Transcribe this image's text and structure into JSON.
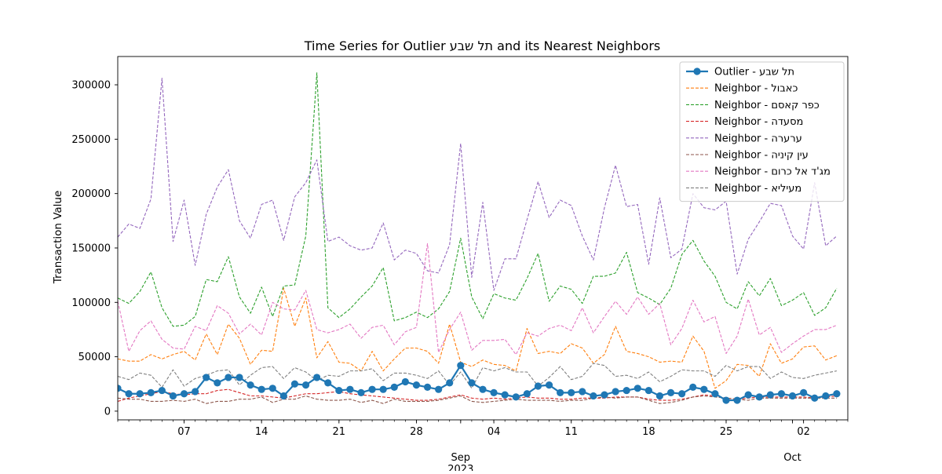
{
  "chart_data": {
    "type": "line",
    "title": "Time Series for Outlier תל שבע and its Nearest Neighbors",
    "xlabel": "",
    "ylabel": "Transaction Value",
    "x_start": "2023-08-01",
    "x_end": "2023-10-06",
    "xlim": [
      "2023-08-01",
      "2023-10-06"
    ],
    "ylim": [
      -8000,
      326000
    ],
    "y_ticks": [
      0,
      50000,
      100000,
      150000,
      200000,
      250000,
      300000
    ],
    "x_ticks": [
      {
        "date": "2023-08-07",
        "label": "07"
      },
      {
        "date": "2023-08-14",
        "label": "14"
      },
      {
        "date": "2023-08-21",
        "label": "21"
      },
      {
        "date": "2023-08-28",
        "label": "28"
      },
      {
        "date": "2023-09-04",
        "label": "04"
      },
      {
        "date": "2023-09-11",
        "label": "11"
      },
      {
        "date": "2023-09-18",
        "label": "18"
      },
      {
        "date": "2023-09-25",
        "label": "25"
      },
      {
        "date": "2023-10-02",
        "label": "02"
      }
    ],
    "month_labels": [
      {
        "date": "2023-09-01",
        "label": "Sep",
        "year": "2023"
      },
      {
        "date": "2023-10-01",
        "label": "Oct",
        "year": ""
      }
    ],
    "grid": false,
    "legend_position": "top-right",
    "series": [
      {
        "name": "Outlier - תל שבע",
        "color": "#1f77b4",
        "style": "solid-marker",
        "values": [
          21000,
          16000,
          16000,
          17000,
          19000,
          14000,
          16000,
          18000,
          31000,
          26000,
          31000,
          31000,
          24000,
          20000,
          21000,
          14000,
          25000,
          24000,
          31000,
          26000,
          19000,
          20000,
          17000,
          20000,
          20000,
          22000,
          27000,
          24000,
          22000,
          20000,
          26000,
          42000,
          26000,
          20000,
          17000,
          15000,
          13000,
          16000,
          23000,
          24000,
          17000,
          17000,
          18000,
          14000,
          15000,
          18000,
          19000,
          21000,
          19000,
          14000,
          17000,
          16000,
          22000,
          20000,
          16000,
          10000,
          10000,
          15000,
          13000,
          15000,
          16000,
          14000,
          17000,
          12000,
          14000,
          16000
        ]
      },
      {
        "name": "Neighbor - כאבול",
        "color": "#ff7f0e",
        "style": "dashed",
        "values": [
          48000,
          46000,
          46000,
          52000,
          48000,
          52000,
          55000,
          47000,
          71000,
          52000,
          80000,
          67000,
          43000,
          56000,
          55000,
          113000,
          78000,
          104000,
          49000,
          64000,
          45000,
          44000,
          37000,
          55000,
          37000,
          48000,
          58000,
          58000,
          55000,
          44000,
          80000,
          45000,
          41000,
          47000,
          43000,
          42000,
          37000,
          76000,
          53000,
          55000,
          53000,
          62000,
          58000,
          44000,
          52000,
          78000,
          55000,
          53000,
          50000,
          45000,
          46000,
          45000,
          69000,
          55000,
          21000,
          28000,
          43000,
          42000,
          32000,
          62000,
          44000,
          48000,
          59000,
          60000,
          47000,
          51000
        ]
      },
      {
        "name": "Neighbor - כפר קאסם",
        "color": "#2ca02c",
        "style": "dashed",
        "values": [
          104000,
          99000,
          110000,
          128000,
          95000,
          78000,
          79000,
          87000,
          121000,
          119000,
          142000,
          105000,
          90000,
          114000,
          87000,
          115000,
          116000,
          161000,
          311000,
          95000,
          86000,
          94000,
          105000,
          115000,
          132000,
          83000,
          86000,
          91000,
          86000,
          94000,
          110000,
          159000,
          105000,
          85000,
          108000,
          104000,
          102000,
          122000,
          145000,
          101000,
          115000,
          112000,
          99000,
          124000,
          124000,
          127000,
          146000,
          109000,
          104000,
          98000,
          113000,
          144000,
          157000,
          138000,
          124000,
          100000,
          94000,
          119000,
          106000,
          122000,
          97000,
          102000,
          109000,
          88000,
          95000,
          113000
        ]
      },
      {
        "name": "Neighbor - מסעדה",
        "color": "#d62728",
        "style": "dashed",
        "values": [
          9000,
          12000,
          14000,
          16000,
          18000,
          16000,
          15000,
          16000,
          16000,
          19000,
          20000,
          17000,
          14000,
          14000,
          13000,
          12000,
          14000,
          16000,
          16000,
          17000,
          18000,
          16000,
          15000,
          14000,
          13000,
          12000,
          11000,
          10000,
          10000,
          11000,
          13000,
          15000,
          12000,
          11000,
          12000,
          11000,
          12000,
          13000,
          12000,
          12000,
          11000,
          11000,
          12000,
          12000,
          12000,
          13000,
          13000,
          13000,
          11000,
          10000,
          10000,
          11000,
          13000,
          15000,
          14000,
          12000,
          11000,
          12000,
          13000,
          13000,
          13000,
          13000,
          13000,
          12000,
          13000,
          14000
        ]
      },
      {
        "name": "Neighbor - ערערה",
        "color": "#9467bd",
        "style": "dashed",
        "values": [
          160000,
          172000,
          168000,
          195000,
          306000,
          156000,
          194000,
          134000,
          181000,
          206000,
          222000,
          175000,
          159000,
          190000,
          194000,
          157000,
          197000,
          210000,
          231000,
          156000,
          160000,
          152000,
          148000,
          150000,
          173000,
          139000,
          148000,
          145000,
          129000,
          127000,
          153000,
          246000,
          123000,
          192000,
          111000,
          140000,
          140000,
          176000,
          211000,
          178000,
          194000,
          189000,
          161000,
          139000,
          187000,
          226000,
          188000,
          190000,
          135000,
          196000,
          141000,
          149000,
          200000,
          187000,
          185000,
          193000,
          126000,
          158000,
          174000,
          191000,
          189000,
          161000,
          149000,
          210000,
          152000,
          161000
        ]
      },
      {
        "name": "Neighbor - עין קיניה",
        "color": "#8c564b",
        "style": "dashed",
        "values": [
          12000,
          11000,
          11000,
          9000,
          9000,
          10000,
          9000,
          11000,
          7000,
          9000,
          9000,
          11000,
          11000,
          13000,
          8000,
          11000,
          11000,
          14000,
          11000,
          10000,
          10000,
          11000,
          8000,
          10000,
          7000,
          11000,
          9000,
          9000,
          9000,
          10000,
          12000,
          14000,
          9000,
          8000,
          9000,
          10000,
          11000,
          10000,
          10000,
          10000,
          9000,
          10000,
          10000,
          12000,
          13000,
          12000,
          13000,
          13000,
          10000,
          7000,
          8000,
          10000,
          13000,
          14000,
          13000,
          12000,
          11000,
          10000,
          12000,
          12000,
          12000,
          12000,
          12000,
          12000,
          12000,
          12000
        ]
      },
      {
        "name": "Neighbor - מג'ד אל כרום",
        "color": "#e377c2",
        "style": "dashed",
        "values": [
          101000,
          55000,
          74000,
          83000,
          66000,
          58000,
          57000,
          78000,
          74000,
          97000,
          90000,
          71000,
          80000,
          70000,
          100000,
          94000,
          93000,
          111000,
          75000,
          72000,
          75000,
          80000,
          67000,
          77000,
          79000,
          61000,
          73000,
          77000,
          154000,
          54000,
          75000,
          91000,
          56000,
          65000,
          65000,
          66000,
          52000,
          72000,
          69000,
          76000,
          79000,
          74000,
          95000,
          72000,
          87000,
          101000,
          89000,
          105000,
          89000,
          99000,
          61000,
          76000,
          102000,
          82000,
          87000,
          53000,
          69000,
          103000,
          70000,
          77000,
          54000,
          62000,
          69000,
          75000,
          75000,
          79000
        ]
      },
      {
        "name": "Neighbor - מעיליא",
        "color": "#7f7f7f",
        "style": "dashed",
        "values": [
          32000,
          29000,
          35000,
          33000,
          22000,
          38000,
          23000,
          30000,
          33000,
          37000,
          38000,
          24000,
          33000,
          40000,
          41000,
          30000,
          40000,
          36000,
          28000,
          33000,
          32000,
          37000,
          37000,
          39000,
          28000,
          35000,
          35000,
          33000,
          30000,
          37000,
          24000,
          36000,
          21000,
          40000,
          37000,
          40000,
          36000,
          36000,
          23000,
          31000,
          41000,
          29000,
          32000,
          44000,
          42000,
          32000,
          33000,
          30000,
          36000,
          27000,
          32000,
          38000,
          37000,
          37000,
          32000,
          42000,
          37000,
          41000,
          41000,
          30000,
          36000,
          31000,
          30000,
          33000,
          35000,
          37000
        ]
      }
    ]
  }
}
